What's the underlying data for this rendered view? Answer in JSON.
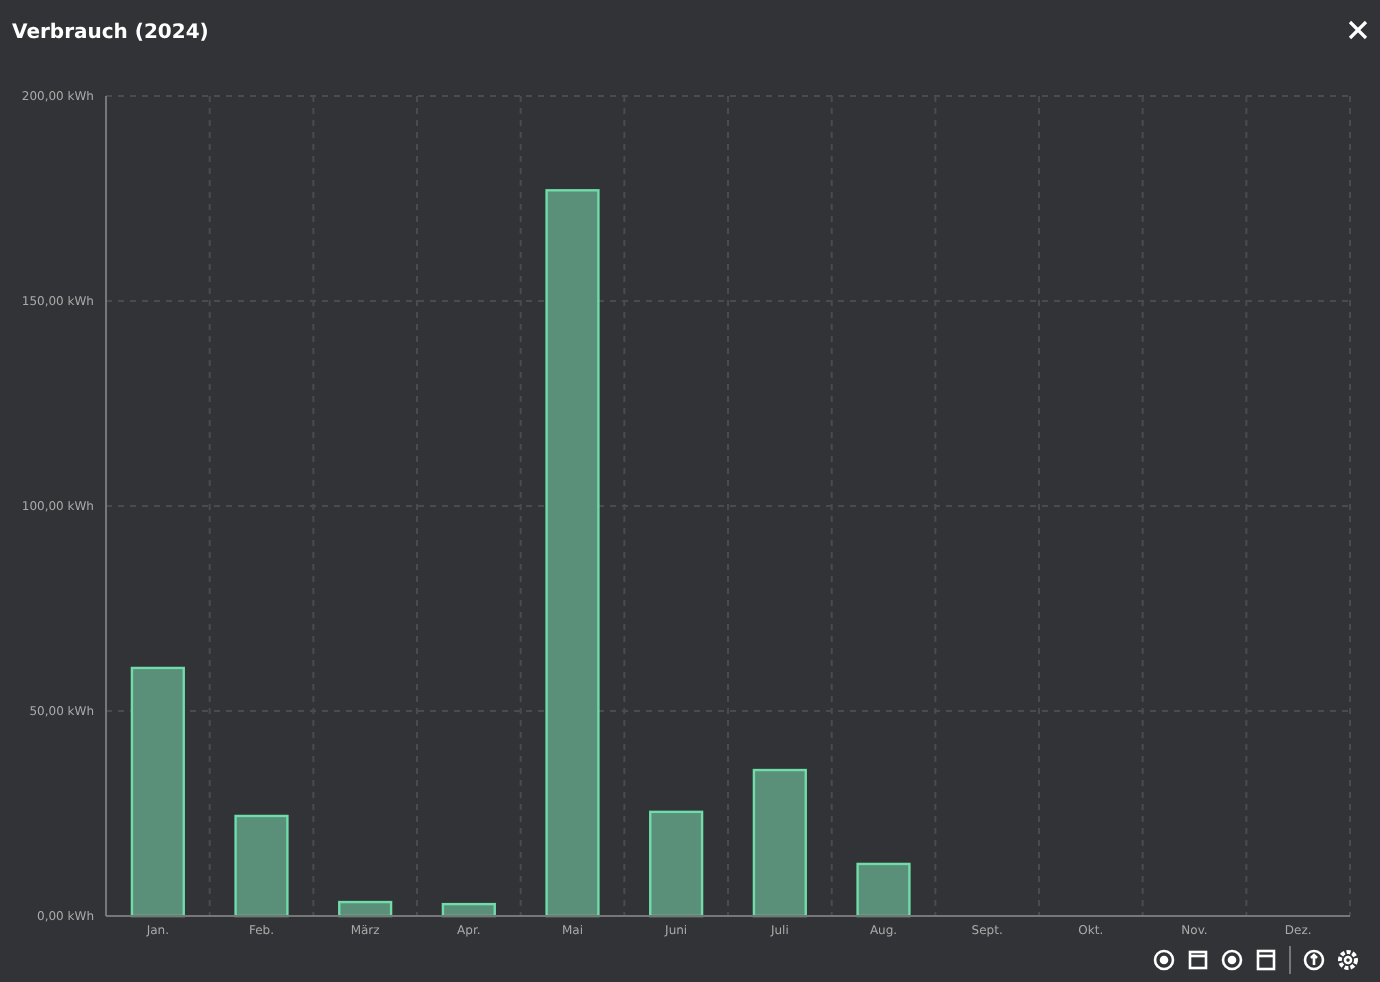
{
  "chart_data": {
    "type": "bar",
    "title": "Verbrauch (2024)",
    "categories": [
      "Jan.",
      "Feb.",
      "März",
      "Apr.",
      "Mai",
      "Juni",
      "Juli",
      "Aug.",
      "Sept.",
      "Okt.",
      "Nov.",
      "Dez."
    ],
    "values": [
      60.5,
      24.4,
      3.4,
      2.9,
      177,
      25.4,
      35.6,
      12.7,
      0,
      0,
      0,
      0
    ],
    "color": "#5a8f79",
    "ylim": [
      0,
      200
    ],
    "yticks": [
      {
        "value": 0,
        "label": "0,00 kWh"
      },
      {
        "value": 50,
        "label": "50,00 kWh"
      },
      {
        "value": 100,
        "label": "100,00 kWh"
      },
      {
        "value": 150,
        "label": "150,00 kWh"
      },
      {
        "value": 200,
        "label": "200,00 kWh"
      }
    ],
    "grid": true
  }
}
